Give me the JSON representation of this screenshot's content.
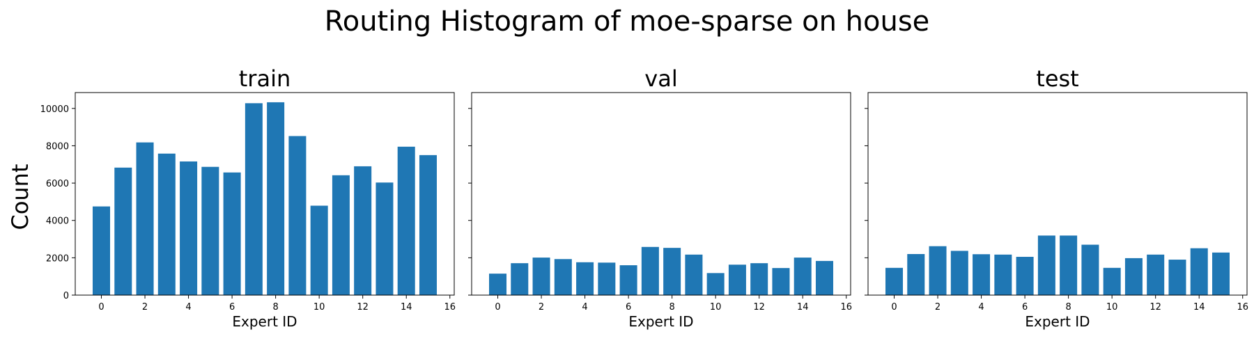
{
  "figure": {
    "title": "Routing Histogram of moe-sparse on house",
    "ylabel": "Count",
    "bar_color": "#1f77b4"
  },
  "chart_data": [
    {
      "type": "bar",
      "title": "train",
      "xlabel": "Expert ID",
      "ylabel": "Count",
      "categories": [
        0,
        1,
        2,
        3,
        4,
        5,
        6,
        7,
        8,
        9,
        10,
        11,
        12,
        13,
        14,
        15
      ],
      "values": [
        4750,
        6830,
        8180,
        7580,
        7160,
        6870,
        6570,
        10280,
        10330,
        8520,
        4790,
        6420,
        6900,
        6030,
        7950,
        7500
      ],
      "xticks": [
        "0",
        "2",
        "4",
        "6",
        "8",
        "10",
        "12",
        "14",
        "16"
      ],
      "yticks": [
        "0",
        "2000",
        "4000",
        "6000",
        "8000",
        "10000"
      ],
      "xlim": [
        -1.2,
        16.2
      ],
      "ylim": [
        0,
        10850
      ],
      "grid": false,
      "shared_y": true
    },
    {
      "type": "bar",
      "title": "val",
      "xlabel": "Expert ID",
      "categories": [
        0,
        1,
        2,
        3,
        4,
        5,
        6,
        7,
        8,
        9,
        10,
        11,
        12,
        13,
        14,
        15
      ],
      "values": [
        1150,
        1710,
        2010,
        1930,
        1760,
        1740,
        1600,
        2580,
        2530,
        2170,
        1180,
        1630,
        1710,
        1450,
        2010,
        1830
      ],
      "xticks": [
        "0",
        "2",
        "4",
        "6",
        "8",
        "10",
        "12",
        "14",
        "16"
      ],
      "xlim": [
        -1.2,
        16.2
      ],
      "ylim": [
        0,
        10850
      ],
      "grid": false,
      "shared_y": true
    },
    {
      "type": "bar",
      "title": "test",
      "xlabel": "Expert ID",
      "categories": [
        0,
        1,
        2,
        3,
        4,
        5,
        6,
        7,
        8,
        9,
        10,
        11,
        12,
        13,
        14,
        15
      ],
      "values": [
        1460,
        2200,
        2620,
        2370,
        2190,
        2170,
        2050,
        3190,
        3190,
        2700,
        1460,
        1980,
        2170,
        1900,
        2510,
        2280
      ],
      "xticks": [
        "0",
        "2",
        "4",
        "6",
        "8",
        "10",
        "12",
        "14",
        "16"
      ],
      "xlim": [
        -1.2,
        16.2
      ],
      "ylim": [
        0,
        10850
      ],
      "grid": false,
      "shared_y": true
    }
  ]
}
